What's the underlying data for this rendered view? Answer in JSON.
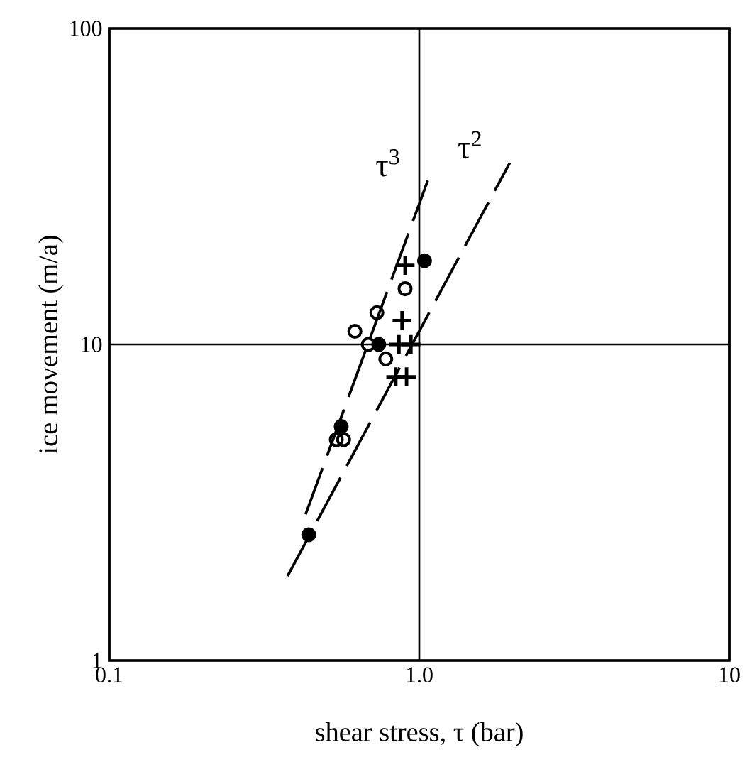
{
  "chart_data": {
    "type": "scatter",
    "xlabel": "shear stress, τ (bar)",
    "ylabel": "ice movement (m/a)",
    "log": "xy",
    "grid": true,
    "line_style": "dashed",
    "xlim": [
      0.1,
      10
    ],
    "ylim": [
      1,
      100
    ],
    "xticks": [
      {
        "value": 0.1,
        "label": "0.1"
      },
      {
        "value": 1,
        "label": "1.0"
      },
      {
        "value": 10,
        "label": "10"
      }
    ],
    "yticks": [
      1,
      10,
      100
    ],
    "series": [
      {
        "marker": "circle",
        "color": "#000000",
        "x": [
          0.9,
          0.73,
          0.62,
          0.685,
          0.78,
          0.54,
          0.57
        ],
        "values": [
          15,
          12.6,
          11,
          10,
          9,
          5,
          5
        ]
      },
      {
        "marker": "dot",
        "color": "#000000",
        "x": [
          1.04,
          0.56,
          0.44,
          0.74
        ],
        "values": [
          18.4,
          5.5,
          2.5,
          10
        ]
      },
      {
        "marker": "cross",
        "color": "#000000",
        "x": [
          0.9,
          0.88,
          0.86,
          0.94,
          0.84,
          0.91
        ],
        "values": [
          17.8,
          11.9,
          10,
          10,
          7.9,
          7.9
        ]
      },
      {
        "type": "line",
        "name": "τ$^{3}$",
        "color": "#000000",
        "x": [
          0.43,
          1.065
        ],
        "values": [
          2.9,
          33
        ]
      },
      {
        "type": "line",
        "name": "τ$^{2}$",
        "color": "#000000",
        "x": [
          0.376,
          1.96
        ],
        "values": [
          1.85,
          37.6
        ]
      }
    ]
  }
}
